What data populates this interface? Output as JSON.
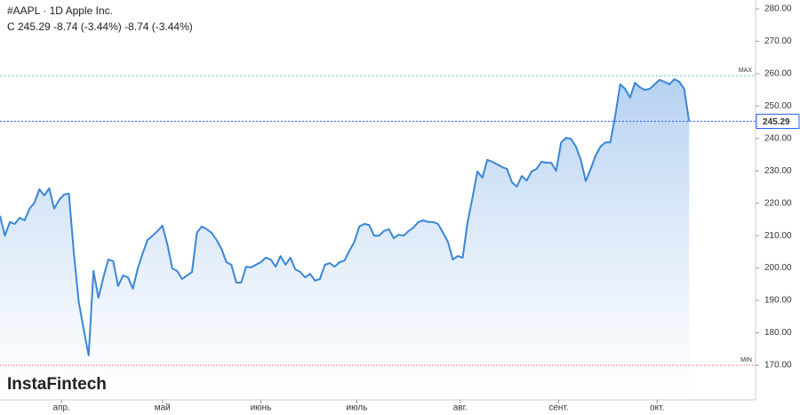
{
  "chart_data": {
    "type": "area",
    "title": "#AAPL · 1D Apple Inc.",
    "subtitle": "C 245.29 -8.74 (-3.44%) -8.74 (-3.44%)",
    "watermark": "InstaFintech",
    "color": "#3a86d6",
    "values": [
      216.1,
      210,
      214.2,
      213.6,
      215.5,
      214.7,
      218.3,
      220.2,
      224.3,
      222.4,
      224.6,
      218.3,
      221,
      222.7,
      223,
      204.6,
      189.5,
      181.2,
      173,
      199.1,
      190.8,
      197.1,
      202.6,
      202.1,
      194.4,
      197.7,
      197.1,
      193.6,
      199.9,
      204.6,
      208.7,
      210,
      211.4,
      213.1,
      207.3,
      199.9,
      199.1,
      196.6,
      197.7,
      198.8,
      210.9,
      212.8,
      212,
      210.9,
      208.7,
      205.9,
      201.8,
      201,
      195.5,
      195.5,
      200.4,
      200.2,
      201,
      201.8,
      203.2,
      202.6,
      200.4,
      203.7,
      201,
      203.2,
      199.6,
      198.8,
      197.1,
      198.2,
      196.1,
      196.6,
      201,
      201.5,
      200.4,
      201.8,
      202.3,
      205.4,
      208.1,
      212.8,
      213.6,
      213.3,
      210,
      210,
      211.4,
      212,
      209.2,
      210.3,
      210,
      211.4,
      212.5,
      214.2,
      214.7,
      214.2,
      214.2,
      213.6,
      210.9,
      208.1,
      202.6,
      203.7,
      203.2,
      214.2,
      221.8,
      229.8,
      227.9,
      233.4,
      232.8,
      232,
      231.2,
      230.6,
      226.5,
      225.1,
      228.4,
      227,
      229.8,
      230.6,
      232.8,
      232.5,
      232.5,
      230,
      238.8,
      240.2,
      239.9,
      237.5,
      233.4,
      226.8,
      230.6,
      234.7,
      237.5,
      238.8,
      238.8,
      247.1,
      256.7,
      255.3,
      252.6,
      257.2,
      255.8,
      255,
      255.3,
      256.7,
      258.1,
      257.5,
      256.7,
      258.3,
      257.5,
      255.3,
      245.29
    ],
    "xlim": [
      0,
      153.5
    ],
    "xticks": [
      {
        "value": 12.5,
        "label": "апр."
      },
      {
        "value": 33,
        "label": "май"
      },
      {
        "value": 53,
        "label": "июнь"
      },
      {
        "value": 72.5,
        "label": "июль"
      },
      {
        "value": 93.5,
        "label": "авг."
      },
      {
        "value": 113.5,
        "label": "сент."
      },
      {
        "value": 133.5,
        "label": "окт."
      }
    ],
    "ylim": [
      159.29,
      282.74
    ],
    "yticks": [
      {
        "value": 170,
        "label": "170.00"
      },
      {
        "value": 180,
        "label": "180.00"
      },
      {
        "value": 190,
        "label": "190.00"
      },
      {
        "value": 200,
        "label": "200.00"
      },
      {
        "value": 210,
        "label": "210.00"
      },
      {
        "value": 220,
        "label": "220.00"
      },
      {
        "value": 230,
        "label": "230.00"
      },
      {
        "value": 240,
        "label": "240.00"
      },
      {
        "value": 250,
        "label": "250.00"
      },
      {
        "value": 260,
        "label": "260.00"
      },
      {
        "value": 270,
        "label": "270.00"
      },
      {
        "value": 280,
        "label": "280.00"
      }
    ],
    "last_price": {
      "value": 245.29,
      "label": "245.29",
      "color": "#2962ff"
    },
    "max_line": {
      "value": 259.4,
      "label": "MAX",
      "color": "#26a69a"
    },
    "min_line": {
      "value": 170,
      "label": "MIN",
      "color": "#ef5350"
    }
  }
}
